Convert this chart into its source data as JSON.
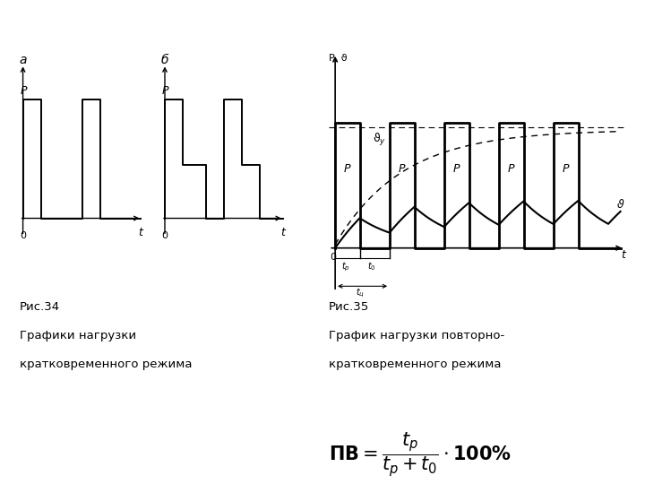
{
  "bg_color": "#ffffff",
  "text_color": "#000000",
  "fig_34_caption_line1": "Рис.34",
  "fig_34_caption_line2": "Графики нагрузки",
  "fig_34_caption_line3": "кратковременного режима",
  "fig_35_caption_line1": "Рис.35",
  "fig_35_caption_line2": "График нагрузки повторно-",
  "fig_35_caption_line3": "кратковременного режима"
}
